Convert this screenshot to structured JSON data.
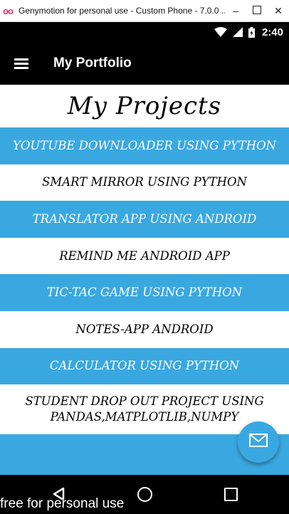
{
  "window": {
    "title": "Genymotion for personal use - Custom Phone - 7.0.0 ...",
    "minimize": "–",
    "close": "✕"
  },
  "status_bar": {
    "time": "2:40",
    "icons": [
      "wifi-icon",
      "signal-icon",
      "battery-icon"
    ]
  },
  "app_bar": {
    "title": "My Portfolio",
    "menu_icon": "hamburger-menu-icon"
  },
  "main": {
    "heading": "My Projects",
    "projects": [
      {
        "label": "YOUTUBE DOWNLOADER USING PYTHON",
        "style": "blue"
      },
      {
        "label": "SMART MIRROR USING PYTHON",
        "style": "white"
      },
      {
        "label": "TRANSLATOR APP USING ANDROID",
        "style": "blue"
      },
      {
        "label": "REMIND ME ANDROID APP",
        "style": "white"
      },
      {
        "label": "TIC-TAC GAME USING PYTHON",
        "style": "blue"
      },
      {
        "label": "NOTES-APP ANDROID",
        "style": "white"
      },
      {
        "label": "CALCULATOR USING PYTHON",
        "style": "blue"
      },
      {
        "label": "STUDENT DROP OUT PROJECT USING PANDAS,MATPLOTLIB,NUMPY",
        "style": "white"
      }
    ]
  },
  "fab": {
    "icon": "email-icon"
  },
  "nav_bar": {
    "icons": [
      "back-icon",
      "home-icon",
      "recents-icon"
    ]
  },
  "watermark": "free for personal use",
  "colors": {
    "accent": "#3aa8e0",
    "bar": "#000000",
    "window_logo": "#d6336c"
  }
}
